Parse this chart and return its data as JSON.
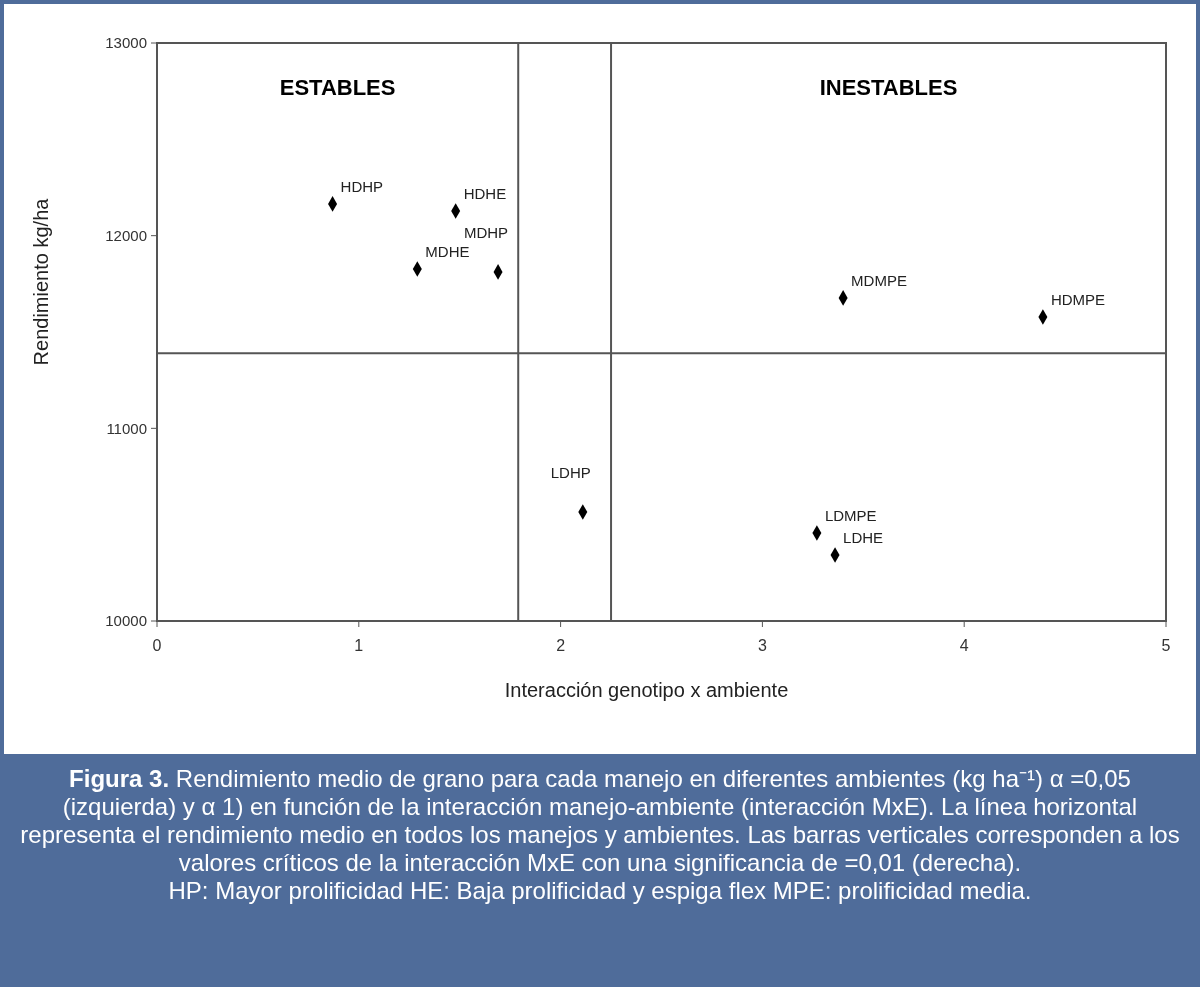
{
  "chart_data": {
    "type": "scatter",
    "xlabel": "Interacción genotipo x ambiente",
    "ylabel": "Rendimiento kg/ha",
    "series": [
      {
        "color": "#000000",
        "x": [
          0.87,
          1.48,
          1.29,
          1.69,
          3.4,
          4.39,
          2.11,
          3.27,
          3.36
        ],
        "values": [
          12165,
          12128,
          11827,
          11812,
          11677,
          11578,
          10566,
          10457,
          10343
        ]
      }
    ],
    "marker": "diamond",
    "xlim": [
      0,
      5
    ],
    "ylim": [
      10000,
      13000
    ],
    "xticks": [
      0,
      1,
      2,
      3,
      4,
      5
    ],
    "yticks": [
      10000,
      11000,
      12000,
      13000
    ],
    "grid": false,
    "ref_lines": [
      {
        "axis": "x",
        "value": 1.79
      },
      {
        "axis": "x",
        "value": 2.25
      },
      {
        "axis": "y",
        "value": 11390
      }
    ],
    "annotations": [
      "ESTABLES",
      "INESTABLES",
      {
        "text": "HDHP",
        "x": 0.87,
        "y": 12165
      },
      {
        "text": "HDHE",
        "x": 1.48,
        "y": 12128
      },
      {
        "text": "MDHE",
        "x": 1.29,
        "y": 11827
      },
      {
        "text": "MDHP",
        "x": 1.69,
        "y": 11812
      },
      {
        "text": "MDMPE",
        "x": 3.4,
        "y": 11677
      },
      {
        "text": "HDMPE",
        "x": 4.39,
        "y": 11578
      },
      {
        "text": "LDHP",
        "x": 2.11,
        "y": 10566
      },
      {
        "text": "LDMPE",
        "x": 3.27,
        "y": 10457
      },
      {
        "text": "LDHE",
        "x": 3.36,
        "y": 10343
      },
      "Figura 3. Rendimiento medio de grano para cada manejo en diferentes ambientes (kg ha⁻¹) α =0,05 (izquierda) y α 1) en función de la interacción manejo-ambiente (interacción MxE). La línea horizontal representa el rendimiento medio en todos los manejos y ambientes. Las barras verticales corresponden a los valores críticos de la interacción MxE con una significancia de =0,01 (derecha).",
      "HP: Mayor prolificidad HE: Baja prolificidad y espiga flex MPE: prolificidad media."
    ]
  }
}
